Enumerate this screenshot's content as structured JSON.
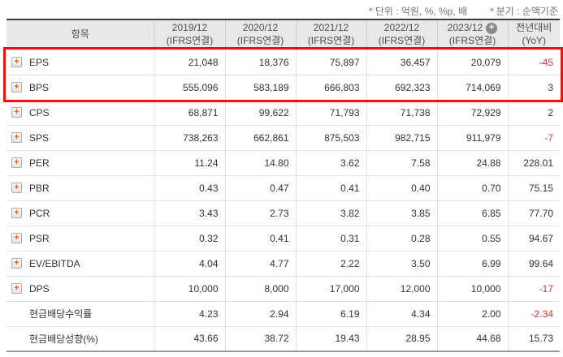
{
  "notes": {
    "unit": {
      "marker": "*",
      "text": "단위 : 억원, %, %p, 배"
    },
    "basis": {
      "marker": "*",
      "text": "분기 : 순액기준"
    }
  },
  "table": {
    "item_header": "항목",
    "period_columns": [
      {
        "period": "2019/12",
        "standard": "(IFRS연결)"
      },
      {
        "period": "2020/12",
        "standard": "(IFRS연결)"
      },
      {
        "period": "2021/12",
        "standard": "(IFRS연결)"
      },
      {
        "period": "2022/12",
        "standard": "(IFRS연결)"
      },
      {
        "period": "2023/12",
        "standard": "(IFRS연결)",
        "has_add_icon": true
      }
    ],
    "yoy_header": {
      "line1": "전년대비",
      "line2": "(YoY)"
    },
    "rows": [
      {
        "label": "EPS",
        "has_icon": true,
        "highlighted": true,
        "values": [
          "21,048",
          "18,376",
          "75,897",
          "36,457",
          "20,079"
        ],
        "yoy": "-45"
      },
      {
        "label": "BPS",
        "has_icon": true,
        "highlighted": true,
        "values": [
          "555,096",
          "583,189",
          "666,803",
          "692,323",
          "714,069"
        ],
        "yoy": "3"
      },
      {
        "label": "CPS",
        "has_icon": true,
        "highlighted": false,
        "values": [
          "68,871",
          "99,622",
          "71,793",
          "71,738",
          "72,929"
        ],
        "yoy": "2"
      },
      {
        "label": "SPS",
        "has_icon": true,
        "highlighted": false,
        "values": [
          "738,263",
          "662,861",
          "875,503",
          "982,715",
          "911,979"
        ],
        "yoy": "-7"
      },
      {
        "label": "PER",
        "has_icon": true,
        "highlighted": false,
        "values": [
          "11.24",
          "14.80",
          "3.62",
          "7.58",
          "24.88"
        ],
        "yoy": "228.01"
      },
      {
        "label": "PBR",
        "has_icon": true,
        "highlighted": false,
        "values": [
          "0.43",
          "0.47",
          "0.41",
          "0.40",
          "0.70"
        ],
        "yoy": "75.15"
      },
      {
        "label": "PCR",
        "has_icon": true,
        "highlighted": false,
        "values": [
          "3.43",
          "2.73",
          "3.82",
          "3.85",
          "6.85"
        ],
        "yoy": "77.70"
      },
      {
        "label": "PSR",
        "has_icon": true,
        "highlighted": false,
        "values": [
          "0.32",
          "0.41",
          "0.31",
          "0.28",
          "0.55"
        ],
        "yoy": "94.67"
      },
      {
        "label": "EV/EBITDA",
        "has_icon": true,
        "highlighted": false,
        "values": [
          "4.04",
          "4.77",
          "2.22",
          "3.50",
          "6.99"
        ],
        "yoy": "99.64"
      },
      {
        "label": "DPS",
        "has_icon": true,
        "highlighted": false,
        "values": [
          "10,000",
          "8,000",
          "17,000",
          "12,000",
          "10,000"
        ],
        "yoy": "-17"
      },
      {
        "label": "현금배당수익률",
        "has_icon": false,
        "highlighted": false,
        "values": [
          "4.23",
          "2.94",
          "6.19",
          "4.34",
          "2.00"
        ],
        "yoy": "-2.34"
      },
      {
        "label": "현금배당성향(%)",
        "has_icon": false,
        "highlighted": false,
        "values": [
          "43.66",
          "38.72",
          "19.43",
          "28.95",
          "44.68"
        ],
        "yoy": "15.73"
      }
    ]
  },
  "icons": {
    "expand_row_icon": "+",
    "add_column_icon": "+"
  },
  "colors": {
    "highlight": "#ee1111",
    "negative": "#e03131",
    "plus": "#f25c1b",
    "marker": "#e0492f",
    "header_bg": "#e8e8e8",
    "text": "#333333",
    "header_text": "#4d4d4d"
  }
}
